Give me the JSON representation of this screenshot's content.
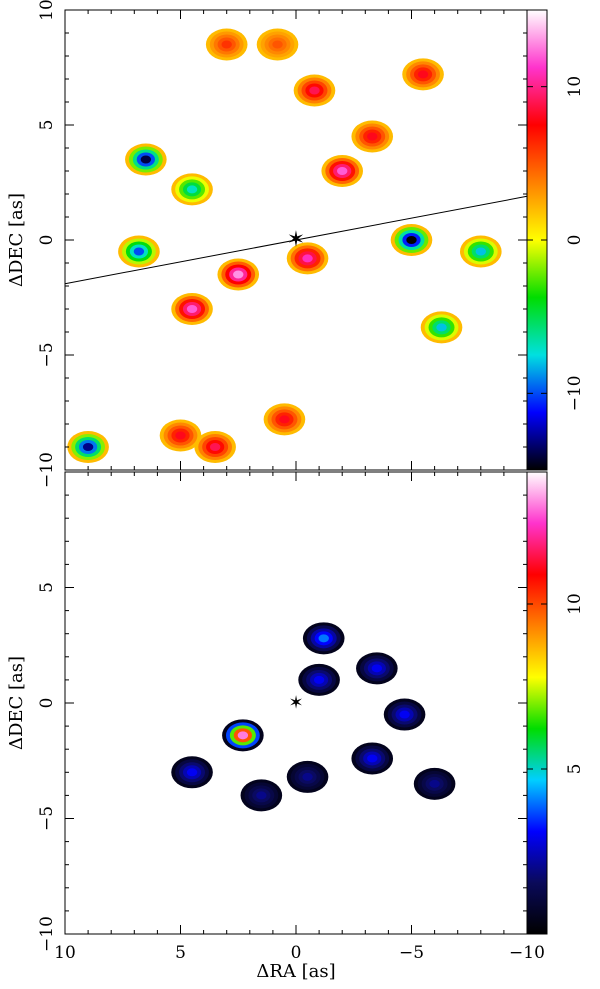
{
  "chart_data": [
    {
      "type": "heatmap",
      "panel": "top",
      "ylabel": "ΔDEC [as]",
      "xlim": [
        10,
        -10
      ],
      "ylim": [
        -10,
        10
      ],
      "x_ticks": [
        10,
        5,
        0,
        -5,
        -10
      ],
      "y_ticks": [
        -10,
        -5,
        0,
        5,
        10
      ],
      "y_tick_labels": [
        "−10",
        "−5",
        "0",
        "5",
        "10"
      ],
      "colorbar": {
        "range": [
          -15,
          15
        ],
        "ticks": [
          10,
          0,
          -10
        ],
        "tick_labels": [
          "10",
          "0",
          "−10"
        ],
        "colormap": [
          "#000000",
          "#0000ff",
          "#00e0e0",
          "#00dd00",
          "#ffff00",
          "#ff8000",
          "#ff0000",
          "#ff33cc",
          "#ffffff"
        ]
      },
      "star_marker": {
        "x": 0,
        "y": 0
      },
      "line": {
        "from": [
          10,
          -1.9
        ],
        "to": [
          -10,
          1.9
        ]
      },
      "features": [
        {
          "x": 2.5,
          "y": -1.5,
          "v": 13
        },
        {
          "x": -2.0,
          "y": 3.0,
          "v": 12
        },
        {
          "x": -0.5,
          "y": -0.8,
          "v": 11
        },
        {
          "x": 4.5,
          "y": -3.0,
          "v": 12
        },
        {
          "x": 6.5,
          "y": 3.5,
          "v": -14
        },
        {
          "x": 4.5,
          "y": 2.2,
          "v": -7
        },
        {
          "x": 6.8,
          "y": -0.5,
          "v": -10
        },
        {
          "x": -5.0,
          "y": 0.0,
          "v": -15
        },
        {
          "x": -8.0,
          "y": -0.5,
          "v": -8
        },
        {
          "x": -6.3,
          "y": -3.8,
          "v": -8
        },
        {
          "x": -5.5,
          "y": 7.2,
          "v": 8
        },
        {
          "x": 0.8,
          "y": 8.5,
          "v": 5
        },
        {
          "x": 3.0,
          "y": 8.5,
          "v": 6
        },
        {
          "x": -0.8,
          "y": 6.5,
          "v": 9
        },
        {
          "x": -3.3,
          "y": 4.5,
          "v": 8
        },
        {
          "x": 5.0,
          "y": -8.5,
          "v": 8
        },
        {
          "x": 3.5,
          "y": -9.0,
          "v": 9
        },
        {
          "x": 0.5,
          "y": -7.8,
          "v": 8
        },
        {
          "x": 9.0,
          "y": -9.0,
          "v": -13
        }
      ]
    },
    {
      "type": "heatmap",
      "panel": "bottom",
      "xlabel": "ΔRA [as]",
      "ylabel": "ΔDEC [as]",
      "xlim": [
        10,
        -10
      ],
      "ylim": [
        -10,
        10
      ],
      "x_ticks": [
        10,
        5,
        0,
        -5,
        -10
      ],
      "x_tick_labels": [
        "10",
        "5",
        "0",
        "−5",
        "−10"
      ],
      "y_ticks": [
        -10,
        -5,
        0,
        5
      ],
      "y_tick_labels": [
        "−10",
        "−5",
        "0",
        "5"
      ],
      "colorbar": {
        "range": [
          0,
          14
        ],
        "ticks": [
          10,
          5
        ],
        "tick_labels": [
          "10",
          "5"
        ],
        "colormap": [
          "#000000",
          "#0a0a5a",
          "#0000ff",
          "#00cfff",
          "#00dd00",
          "#ffff00",
          "#ff8000",
          "#ff0000",
          "#ff33cc",
          "#ffffff"
        ]
      },
      "star_marker": {
        "x": 0,
        "y": 0
      },
      "features": [
        {
          "x": 2.3,
          "y": -1.4,
          "v": 13
        },
        {
          "x": -1.2,
          "y": 2.8,
          "v": 4
        },
        {
          "x": -1.0,
          "y": 1.0,
          "v": 3
        },
        {
          "x": -3.5,
          "y": 1.5,
          "v": 3
        },
        {
          "x": -4.7,
          "y": -0.5,
          "v": 3
        },
        {
          "x": -3.3,
          "y": -2.4,
          "v": 3
        },
        {
          "x": -0.5,
          "y": -3.2,
          "v": 2
        },
        {
          "x": 1.5,
          "y": -4.0,
          "v": 2
        },
        {
          "x": 4.5,
          "y": -3.0,
          "v": 3
        },
        {
          "x": -6.0,
          "y": -3.5,
          "v": 2
        }
      ]
    }
  ]
}
